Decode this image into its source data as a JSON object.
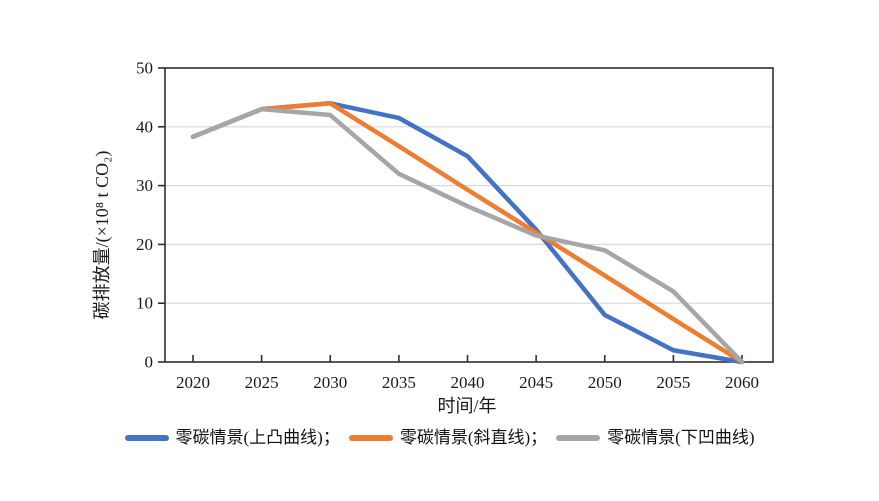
{
  "page": {
    "background": "#ffffff"
  },
  "chart_data": {
    "type": "line",
    "x": [
      2020,
      2025,
      2030,
      2035,
      2040,
      2045,
      2050,
      2055,
      2060
    ],
    "x_tick_labels": [
      "2020",
      "2025",
      "2030",
      "2035",
      "2040",
      "2045",
      "2050",
      "2055",
      "2060"
    ],
    "series": [
      {
        "name": "零碳情景(上凸曲线)",
        "color": "#4472C4",
        "values": [
          38.3,
          43,
          44,
          41.5,
          35,
          22.5,
          8,
          2,
          0
        ]
      },
      {
        "name": "零碳情景(斜直线)",
        "color": "#ED7D31",
        "values": [
          38.3,
          43,
          44,
          36.7,
          29.3,
          22,
          14.7,
          7.3,
          0
        ]
      },
      {
        "name": "零碳情景(下凹曲线)",
        "color": "#A6A6A6",
        "values": [
          38.3,
          43,
          42,
          32,
          26.5,
          21.5,
          19,
          12,
          0
        ]
      }
    ],
    "legend_labels": [
      "零碳情景(上凸曲线)；",
      "零碳情景(斜直线)；",
      "零碳情景(下凹曲线)"
    ],
    "legend_position": "bottom",
    "xlabel": "时间/年",
    "ylabel": "碳排放量/(×10⁸ t CO₂)",
    "ylim": [
      0,
      50
    ],
    "yticks": [
      0,
      10,
      20,
      30,
      40,
      50
    ],
    "grid": "horizontal",
    "axis_color": "#2e2e2e",
    "gridline_color": "#d9d9d9",
    "tick_label_color": "#1a1a1a"
  }
}
